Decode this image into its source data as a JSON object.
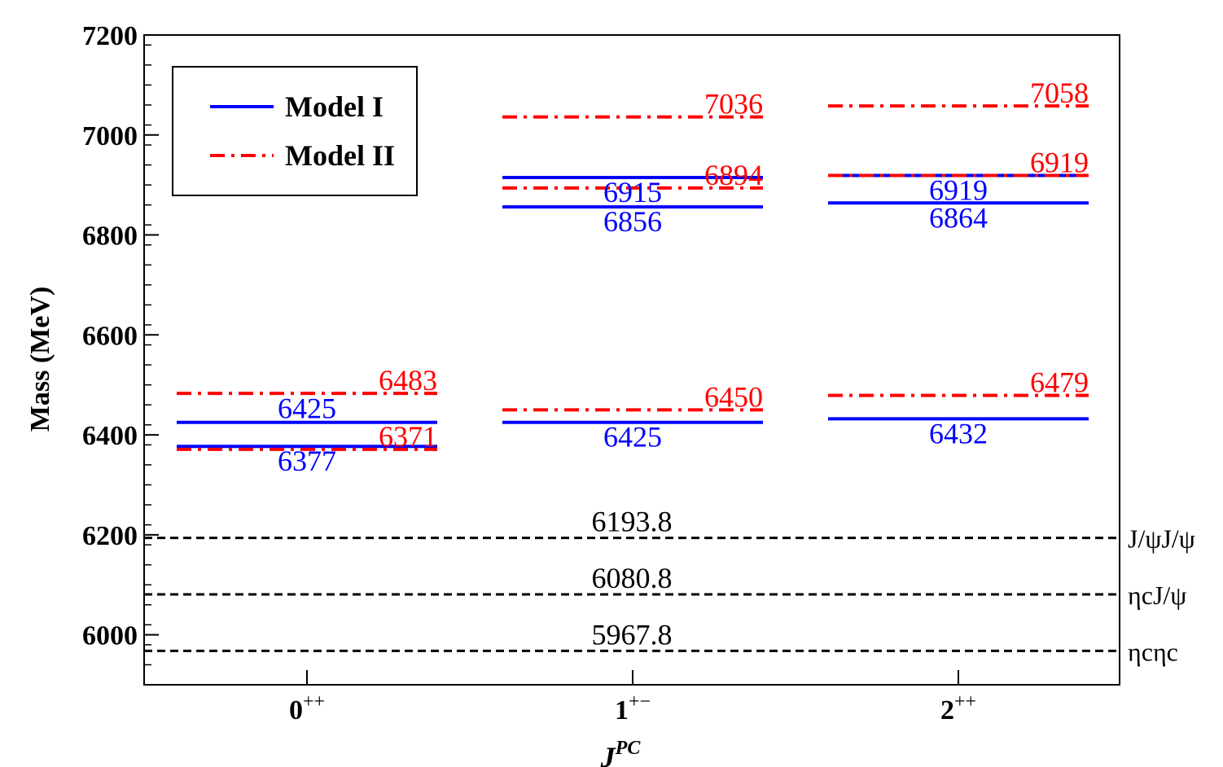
{
  "colors": {
    "model_1": "#0000ff",
    "model_2": "#ff0000",
    "threshold": "#000000"
  },
  "chart_data": {
    "type": "level-diagram",
    "xlabel": "J",
    "xlabel_superscript": "PC",
    "ylabel": "Mass (MeV)",
    "ylim": [
      5900,
      7200
    ],
    "yticks": [
      6000,
      6200,
      6400,
      6600,
      6800,
      7000,
      7200
    ],
    "y_minor_step": 40,
    "categories": [
      {
        "base": "0",
        "sup": "++"
      },
      {
        "base": "1",
        "sup": "+−"
      },
      {
        "base": "2",
        "sup": "++"
      }
    ],
    "legend": {
      "position": "top-left",
      "model_1": "Model I",
      "model_2": "Model II"
    },
    "series": [
      {
        "name": "Model I",
        "style": "solid",
        "levels": [
          [
            6377,
            6425
          ],
          [
            6425,
            6856,
            6915
          ],
          [
            6432,
            6864,
            6919
          ]
        ]
      },
      {
        "name": "Model II",
        "style": "dash-dot",
        "levels": [
          [
            6371,
            6483
          ],
          [
            6450,
            6894,
            7036
          ],
          [
            6479,
            6919,
            7058
          ]
        ]
      }
    ],
    "thresholds": [
      {
        "value": 6193.8,
        "label": "6193.8",
        "name": "J/ψJ/ψ"
      },
      {
        "value": 6080.8,
        "label": "6080.8",
        "name": "ηcJ/ψ"
      },
      {
        "value": 5967.8,
        "label": "5967.8",
        "name": "ηcηc"
      }
    ]
  }
}
